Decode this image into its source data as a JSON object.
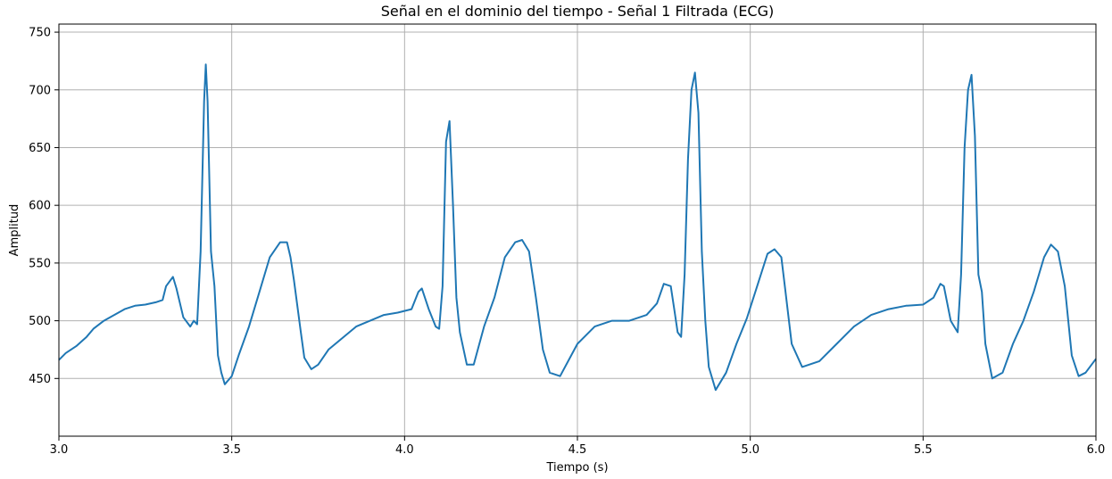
{
  "chart_data": {
    "type": "line",
    "title": "Señal en el dominio del tiempo - Señal 1 Filtrada (ECG)",
    "xlabel": "Tiempo (s)",
    "ylabel": "Amplitud",
    "xlim": [
      3.0,
      6.0
    ],
    "ylim": [
      400,
      757
    ],
    "grid": true,
    "x_ticks": [
      "3.0",
      "3.5",
      "4.0",
      "4.5",
      "5.0",
      "5.5",
      "6.0"
    ],
    "y_ticks": [
      "450",
      "500",
      "550",
      "600",
      "650",
      "700",
      "750"
    ],
    "color": "#1f77b4",
    "series": [
      {
        "x": [
          3.0,
          3.02,
          3.05,
          3.08,
          3.1,
          3.13,
          3.16,
          3.19,
          3.22,
          3.25,
          3.28,
          3.3,
          3.31,
          3.33,
          3.34,
          3.36,
          3.38,
          3.39,
          3.4,
          3.41,
          3.42,
          3.425,
          3.43,
          3.44,
          3.45,
          3.46,
          3.47,
          3.48,
          3.5,
          3.52,
          3.55,
          3.58,
          3.61,
          3.64,
          3.66,
          3.67,
          3.68,
          3.7,
          3.71,
          3.73,
          3.75,
          3.78,
          3.82,
          3.86,
          3.9,
          3.94,
          3.98,
          4.02,
          4.04,
          4.05,
          4.07,
          4.09,
          4.1,
          4.11,
          4.12,
          4.13,
          4.14,
          4.15,
          4.16,
          4.18,
          4.2,
          4.23,
          4.26,
          4.29,
          4.32,
          4.34,
          4.36,
          4.38,
          4.4,
          4.42,
          4.45,
          4.5,
          4.55,
          4.6,
          4.65,
          4.7,
          4.73,
          4.75,
          4.77,
          4.78,
          4.79,
          4.8,
          4.81,
          4.82,
          4.83,
          4.84,
          4.85,
          4.86,
          4.87,
          4.88,
          4.9,
          4.93,
          4.96,
          4.99,
          5.02,
          5.05,
          5.07,
          5.09,
          5.1,
          5.12,
          5.15,
          5.2,
          5.25,
          5.3,
          5.35,
          5.4,
          5.45,
          5.5,
          5.53,
          5.55,
          5.56,
          5.58,
          5.59,
          5.6,
          5.61,
          5.62,
          5.63,
          5.64,
          5.65,
          5.66,
          5.67,
          5.68,
          5.7,
          5.73,
          5.76,
          5.79,
          5.82,
          5.85,
          5.87,
          5.89,
          5.91,
          5.93,
          5.95,
          5.97,
          6.0
        ],
        "values": [
          466,
          472,
          478,
          486,
          493,
          500,
          505,
          510,
          513,
          514,
          516,
          518,
          530,
          538,
          528,
          503,
          495,
          500,
          497,
          560,
          690,
          722,
          690,
          560,
          530,
          470,
          455,
          445,
          452,
          470,
          495,
          525,
          555,
          568,
          568,
          555,
          535,
          490,
          468,
          458,
          462,
          475,
          485,
          495,
          500,
          505,
          507,
          510,
          525,
          528,
          510,
          495,
          493,
          530,
          655,
          673,
          600,
          520,
          490,
          462,
          462,
          495,
          520,
          555,
          568,
          570,
          560,
          520,
          475,
          455,
          452,
          480,
          495,
          500,
          500,
          505,
          515,
          532,
          530,
          510,
          490,
          486,
          540,
          640,
          700,
          715,
          680,
          560,
          500,
          460,
          440,
          455,
          480,
          502,
          530,
          558,
          562,
          555,
          530,
          480,
          460,
          465,
          480,
          495,
          505,
          510,
          513,
          514,
          520,
          532,
          530,
          500,
          495,
          490,
          540,
          650,
          700,
          713,
          660,
          540,
          525,
          480,
          450,
          455,
          480,
          500,
          525,
          555,
          566,
          560,
          530,
          470,
          452,
          455,
          467
        ]
      }
    ]
  }
}
